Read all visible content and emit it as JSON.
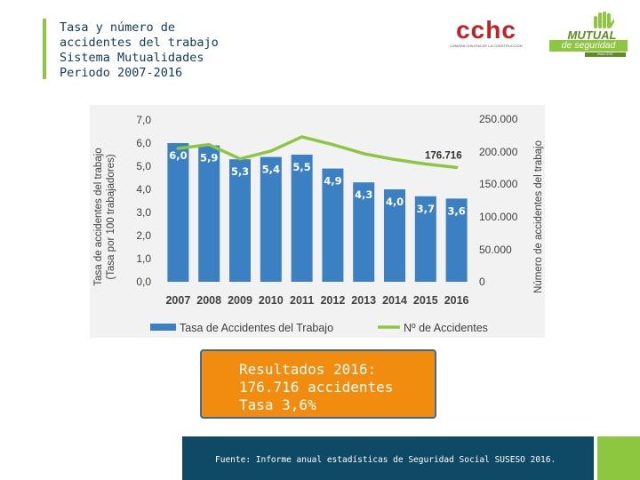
{
  "header": {
    "title_lines": [
      "Tasa y número de",
      "accidentes del trabajo",
      "Sistema Mutualidades",
      "Periodo 2007-2016"
    ]
  },
  "logos": {
    "cchc": {
      "name": "cchc",
      "subtitle": "CAMARA CHILENA DE LA CONSTRUCCION"
    },
    "mutual": {
      "name": "MUTUAL",
      "tagline": "de seguridad",
      "small": "www.CChC"
    }
  },
  "chart_data": {
    "type": "bar+line",
    "categories": [
      "2007",
      "2008",
      "2009",
      "2010",
      "2011",
      "2012",
      "2013",
      "2014",
      "2015",
      "2016"
    ],
    "series": [
      {
        "name": "Tasa de Accidentes del Trabajo",
        "type": "bar",
        "axis": "left",
        "color": "#3a80c3",
        "values": [
          6.0,
          5.9,
          5.3,
          5.4,
          5.5,
          4.9,
          4.3,
          4.0,
          3.7,
          3.6
        ],
        "labels": [
          "6,0",
          "5,9",
          "5,3",
          "5,4",
          "5,5",
          "4,9",
          "4,3",
          "4,0",
          "3,7",
          "3,6"
        ]
      },
      {
        "name": "Nº de Accidentes",
        "type": "line",
        "axis": "right",
        "color": "#8dc63f",
        "values": [
          206000,
          212000,
          190000,
          202000,
          224000,
          212000,
          198000,
          189000,
          182000,
          176716
        ],
        "labels": [
          "",
          "",
          "",
          "",
          "",
          "",
          "",
          "",
          "",
          "176.716"
        ]
      }
    ],
    "left_axis": {
      "label_lines": [
        "Tasa de accidentes del trabajo",
        "(Tasa por 100 trabajadores)"
      ],
      "range": [
        0,
        7
      ],
      "ticks": [
        "0,0",
        "1,0",
        "2,0",
        "3,0",
        "4,0",
        "5,0",
        "6,0",
        "7,0"
      ]
    },
    "right_axis": {
      "label": "Número de accidentes del trabajo",
      "range": [
        0,
        250000
      ],
      "ticks": [
        "0",
        "50.000",
        "100.000",
        "150.000",
        "200.000",
        "250.000"
      ]
    },
    "legend": {
      "position": "bottom"
    }
  },
  "results": {
    "lines": [
      "Resultados 2016:",
      "176.716 accidentes",
      "Tasa 3,6%"
    ]
  },
  "footer": {
    "source": "Fuente: Informe anual estadísticas de Seguridad Social SUSESO 2016."
  },
  "colors": {
    "bar": "#3a80c3",
    "line": "#8dc63f",
    "highlight_box": "#f28c0f",
    "footer": "#0e4966"
  }
}
